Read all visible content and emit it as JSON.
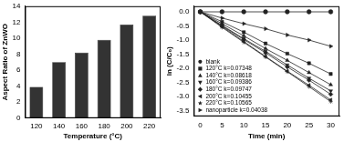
{
  "chart_data": [
    {
      "type": "bar",
      "x_label": "Temperature (°C)",
      "y_label": "Aspect Ratio of ZnWO",
      "categories": [
        "120",
        "140",
        "160",
        "180",
        "200",
        "220"
      ],
      "values": [
        3.9,
        7.0,
        8.2,
        9.8,
        11.7,
        12.8
      ],
      "color": "#333333",
      "ylim": [
        0,
        14
      ],
      "yticks": [
        0,
        2,
        4,
        6,
        8,
        10,
        12,
        14
      ],
      "grid": false
    },
    {
      "type": "line",
      "x_label": "Time (min)",
      "y_label": "ln (C/C₀)",
      "x": [
        0,
        5,
        10,
        15,
        20,
        25,
        30
      ],
      "xlim": [
        -1.5,
        32
      ],
      "xticks": [
        0,
        5,
        10,
        15,
        20,
        25,
        30
      ],
      "ylim": [
        -3.7,
        0.2
      ],
      "yticks": [
        {
          "value": 0,
          "label": "0.0"
        },
        -0.5,
        {
          "value": -1,
          "label": "-1.0"
        },
        -1.5,
        {
          "value": -2,
          "label": "-2.0"
        },
        -2.5,
        {
          "value": -3,
          "label": "-3.0"
        },
        -3.5
      ],
      "grid": false,
      "legend": "lower left",
      "series": [
        {
          "name": "blank",
          "color": "#222222",
          "marker": "circle",
          "line_style": "solid",
          "values": [
            0,
            0,
            0,
            0,
            0,
            0,
            0
          ]
        },
        {
          "name": "120°C k=0.07348",
          "color": "#222222",
          "marker": "square",
          "line_style": "solid",
          "values": [
            0,
            -0.35,
            -0.72,
            -1.12,
            -1.48,
            -1.82,
            -2.2
          ]
        },
        {
          "name": "140°C k=0.08618",
          "color": "#222222",
          "marker": "triangle",
          "line_style": "solid",
          "values": [
            0,
            -0.42,
            -0.85,
            -1.3,
            -1.72,
            -2.15,
            -2.58
          ]
        },
        {
          "name": "160°C k=0.09386",
          "color": "#222222",
          "marker": "triangle-down",
          "line_style": "solid",
          "values": [
            0,
            -0.48,
            -0.95,
            -1.4,
            -1.88,
            -2.35,
            -2.8
          ]
        },
        {
          "name": "180°C k=0.09747",
          "color": "#222222",
          "marker": "diamond",
          "line_style": "solid",
          "values": [
            0,
            -0.5,
            -0.98,
            -1.45,
            -1.95,
            -2.42,
            -2.92
          ]
        },
        {
          "name": "200°C k=0.10455",
          "color": "#222222",
          "marker": "triangle-left",
          "line_style": "solid",
          "values": [
            0,
            -0.52,
            -1.05,
            -1.58,
            -2.1,
            -2.6,
            -3.12
          ]
        },
        {
          "name": "220°C k=0.10565",
          "color": "#222222",
          "marker": "star",
          "line_style": "solid",
          "values": [
            0,
            -0.55,
            -1.08,
            -1.6,
            -2.12,
            -2.65,
            -3.18
          ]
        },
        {
          "name": "nanoparticle k=0.04038",
          "color": "#222222",
          "marker": "triangle-right",
          "line_style": "solid",
          "values": [
            0,
            -0.22,
            -0.42,
            -0.6,
            -0.82,
            -1.0,
            -1.22
          ]
        }
      ]
    }
  ]
}
